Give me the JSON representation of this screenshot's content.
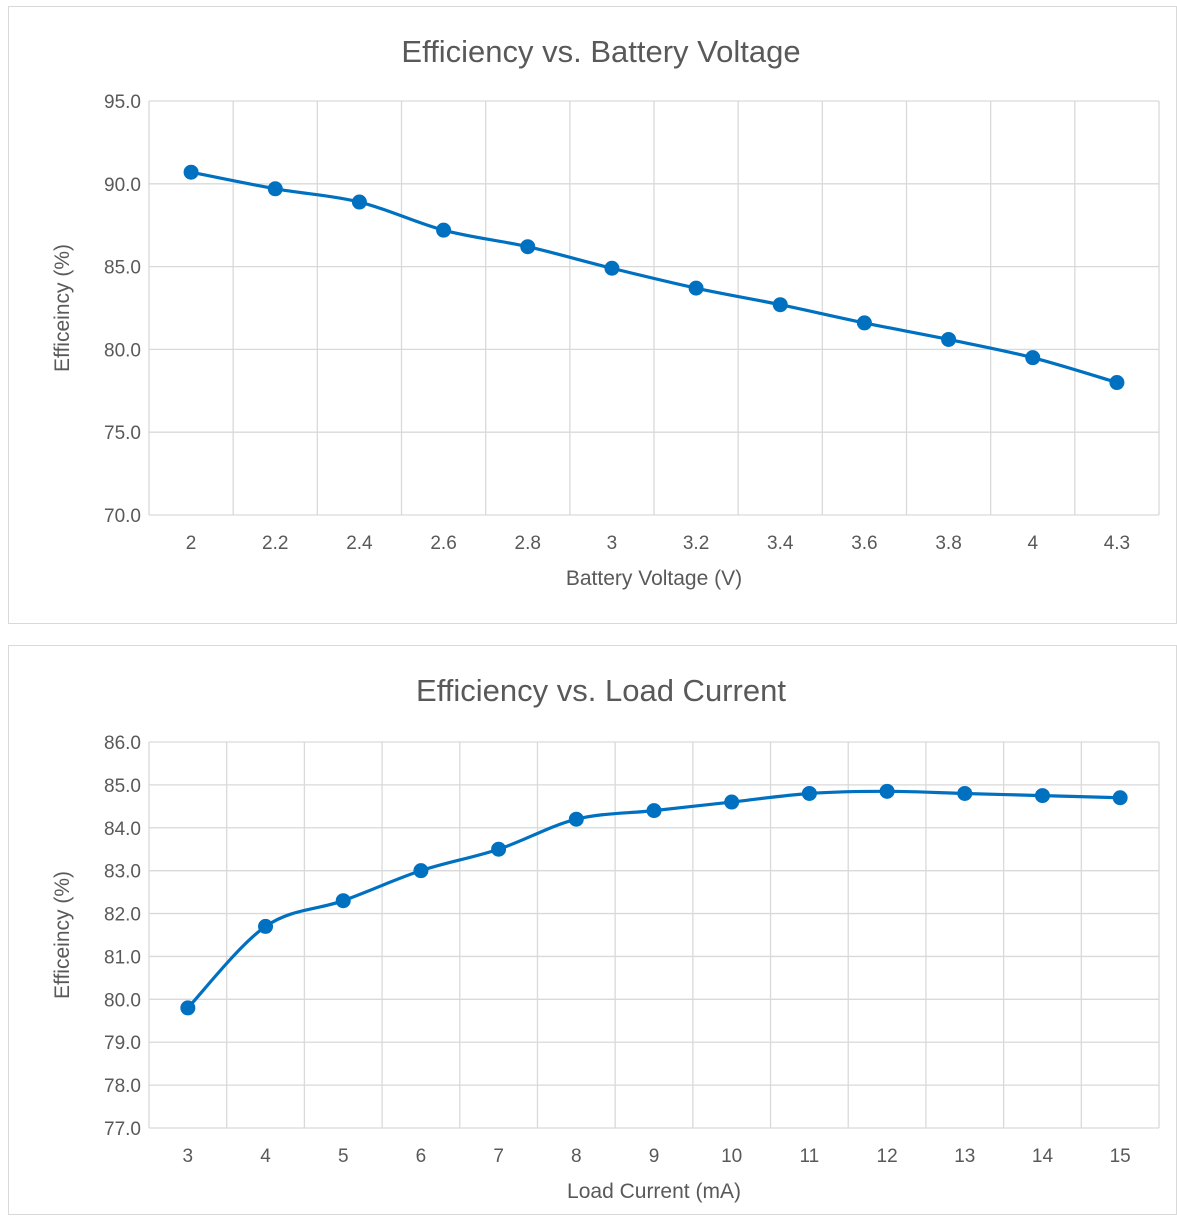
{
  "chart_data": [
    {
      "type": "line",
      "title": "Efficiency vs. Battery Voltage",
      "xlabel": "Battery Voltage (V)",
      "ylabel": "Efficeincy (%)",
      "categories": [
        "2",
        "2.2",
        "2.4",
        "2.6",
        "2.8",
        "3",
        "3.2",
        "3.4",
        "3.6",
        "3.8",
        "4",
        "4.3"
      ],
      "series": [
        {
          "values": [
            90.7,
            89.7,
            88.9,
            87.2,
            86.2,
            84.9,
            83.7,
            82.7,
            81.6,
            80.6,
            79.5,
            78.0
          ]
        }
      ],
      "ylim": [
        70,
        95
      ],
      "yticks": [
        "70.0",
        "75.0",
        "80.0",
        "85.0",
        "90.0",
        "95.0"
      ],
      "grid": true,
      "line_color": "#0070c0",
      "smooth": true
    },
    {
      "type": "line",
      "title": "Efficiency vs. Load Current",
      "xlabel": "Load Current (mA)",
      "ylabel": "Efficeincy (%)",
      "categories": [
        "3",
        "4",
        "5",
        "6",
        "7",
        "8",
        "9",
        "10",
        "11",
        "12",
        "13",
        "14",
        "15"
      ],
      "series": [
        {
          "values": [
            79.8,
            81.7,
            82.3,
            83.0,
            83.5,
            84.2,
            84.4,
            84.6,
            84.8,
            84.85,
            84.8,
            84.75,
            84.7
          ]
        }
      ],
      "ylim": [
        77,
        86
      ],
      "yticks": [
        "77.0",
        "78.0",
        "79.0",
        "80.0",
        "81.0",
        "82.0",
        "83.0",
        "84.0",
        "85.0",
        "86.0"
      ],
      "grid": true,
      "line_color": "#0070c0",
      "smooth": true
    }
  ]
}
